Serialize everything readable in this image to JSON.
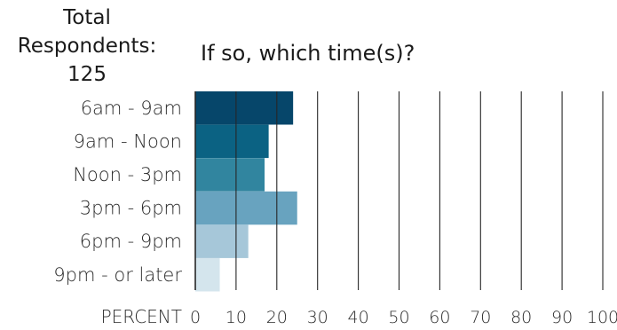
{
  "respondents": {
    "line1": "Total",
    "line2": "Respondents:",
    "line3": "125"
  },
  "chart_data": {
    "type": "bar",
    "orientation": "horizontal",
    "title": "If so, which time(s)?",
    "xlabel": "PERCENT",
    "ylabel": "",
    "xlim": [
      0,
      100
    ],
    "xticks": [
      0,
      10,
      20,
      30,
      40,
      50,
      60,
      70,
      80,
      90,
      100
    ],
    "grid": true,
    "categories": [
      "6am - 9am",
      "9am - Noon",
      "Noon - 3pm",
      "3pm - 6pm",
      "6pm - 9pm",
      "9pm - or later"
    ],
    "values": [
      24,
      18,
      17,
      25,
      13,
      6
    ],
    "colors": [
      "#06466a",
      "#0b6283",
      "#31859f",
      "#68a3bf",
      "#a6c7d9",
      "#d4e5ed"
    ]
  }
}
